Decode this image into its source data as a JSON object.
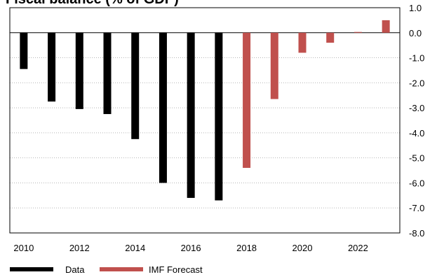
{
  "chart_data": {
    "type": "bar",
    "title": "Fiscal balance (% of GDP)",
    "xlabel": "",
    "ylabel": "",
    "ylim": [
      -8.0,
      1.0
    ],
    "y_ticks": [
      "1.0",
      "0.0",
      "-1.0",
      "-2.0",
      "-3.0",
      "-4.0",
      "-5.0",
      "-6.0",
      "-7.0",
      "-8.0"
    ],
    "x_ticks": [
      "2010",
      "2012",
      "2014",
      "2016",
      "2018",
      "2020",
      "2022"
    ],
    "categories": [
      "2010",
      "2011",
      "2012",
      "2013",
      "2014",
      "2015",
      "2016",
      "2017",
      "2018",
      "2019",
      "2020",
      "2021",
      "2022",
      "2023"
    ],
    "series": [
      {
        "name": "Data",
        "color": "#000000",
        "values": [
          -1.45,
          -2.75,
          -3.05,
          -3.25,
          -4.25,
          -6.0,
          -6.6,
          -6.7,
          null,
          null,
          null,
          null,
          null,
          null
        ]
      },
      {
        "name": "IMF Forecast",
        "color": "#c0504d",
        "values": [
          null,
          null,
          null,
          null,
          null,
          null,
          null,
          null,
          -5.4,
          -2.65,
          -0.8,
          -0.4,
          0.03,
          0.5
        ]
      }
    ],
    "grid": "horizontal dotted",
    "legend": "bottom-left"
  }
}
